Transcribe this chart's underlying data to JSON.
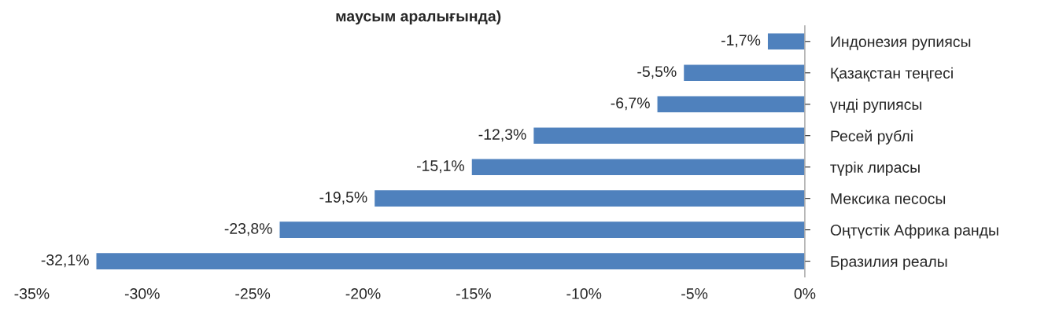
{
  "chart_data": {
    "type": "bar",
    "orientation": "horizontal",
    "title": "маусым аралығында)",
    "categories": [
      "Индонезия рупиясы",
      "Қазақстан теңгесі",
      "үнді рупиясы",
      "Ресей рублі",
      "түрік лирасы",
      "Мексика песосы",
      "Оңтүстік Африка ранды",
      "Бразилия реалы"
    ],
    "values": [
      -1.7,
      -5.5,
      -6.7,
      -12.3,
      -15.1,
      -19.5,
      -23.8,
      -32.1
    ],
    "value_labels": [
      "-1,7%",
      "-5,5%",
      "-6,7%",
      "-12,3%",
      "-15,1%",
      "-19,5%",
      "-23,8%",
      "-32,1%"
    ],
    "color": "#4f81bd",
    "xlim": [
      -35,
      0
    ],
    "xticks": [
      {
        "value": -35,
        "label": "-35%"
      },
      {
        "value": -30,
        "label": "-30%"
      },
      {
        "value": -25,
        "label": "-25%"
      },
      {
        "value": -20,
        "label": "-20%"
      },
      {
        "value": -15,
        "label": "-15%"
      },
      {
        "value": -10,
        "label": "-10%"
      },
      {
        "value": -5,
        "label": "-5%"
      },
      {
        "value": 0,
        "label": "0%"
      }
    ],
    "grid": false,
    "legend": false
  }
}
